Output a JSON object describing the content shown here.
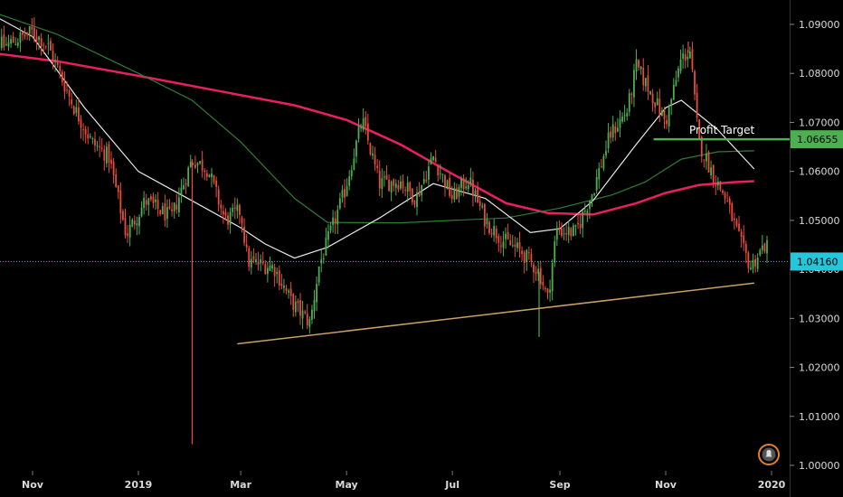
{
  "chart_data": {
    "type": "candlestick",
    "instrument_hint": "daily price chart",
    "y_axis": {
      "ticks": [
        "1.09000",
        "1.08000",
        "1.07000",
        "1.06000",
        "1.05000",
        "1.04000",
        "1.03000",
        "1.02000",
        "1.01000",
        "1.00000"
      ],
      "ylim": [
        1.0,
        1.093
      ],
      "position": "right"
    },
    "x_axis": {
      "ticks": [
        "Nov",
        "2019",
        "Mar",
        "May",
        "Jul",
        "Sep",
        "Nov",
        "2020"
      ],
      "tick_dates": [
        "2018-11-01",
        "2019-01-01",
        "2019-03-01",
        "2019-05-01",
        "2019-07-01",
        "2019-09-01",
        "2019-11-01",
        "2020-01-01"
      ],
      "xlim": [
        "2018-10-01",
        "2020-01-13"
      ]
    },
    "grid": false,
    "annotations": {
      "profit_target": {
        "label": "Profit Target",
        "value": 1.06655,
        "value_text": "1.06655",
        "start_date": "2019-10-25",
        "color": "#4caf50"
      },
      "current_price": {
        "value": 1.0416,
        "value_text": "1.04160",
        "color": "#26c6da"
      },
      "support_trendline": {
        "start": [
          "2019-02-27",
          1.0248
        ],
        "end": [
          "2019-12-22",
          1.0372
        ],
        "color": "#c8a064"
      }
    },
    "moving_averages": [
      {
        "color": "#e91e63",
        "points": [
          [
            "2018-10-01",
            1.0845
          ],
          [
            "2018-11-15",
            1.0825
          ],
          [
            "2019-01-01",
            1.0795
          ],
          [
            "2019-02-15",
            1.0765
          ],
          [
            "2019-04-01",
            1.0735
          ],
          [
            "2019-05-01",
            1.0705
          ],
          [
            "2019-06-01",
            1.0655
          ],
          [
            "2019-07-01",
            1.0595
          ],
          [
            "2019-08-01",
            1.0535
          ],
          [
            "2019-08-25",
            1.0515
          ],
          [
            "2019-09-20",
            1.0512
          ],
          [
            "2019-10-15",
            1.0535
          ],
          [
            "2019-11-01",
            1.0556
          ],
          [
            "2019-11-20",
            1.0572
          ],
          [
            "2019-12-10",
            1.0578
          ],
          [
            "2019-12-22",
            1.058
          ]
        ]
      },
      {
        "color": "#2e7d32",
        "points": [
          [
            "2018-10-01",
            1.0935
          ],
          [
            "2018-11-15",
            1.088
          ],
          [
            "2019-01-01",
            1.08
          ],
          [
            "2019-02-01",
            1.0745
          ],
          [
            "2019-03-01",
            1.066
          ],
          [
            "2019-04-01",
            1.0545
          ],
          [
            "2019-04-20",
            1.0496
          ],
          [
            "2019-06-01",
            1.0495
          ],
          [
            "2019-07-01",
            1.05
          ],
          [
            "2019-08-01",
            1.0505
          ],
          [
            "2019-09-01",
            1.0525
          ],
          [
            "2019-10-01",
            1.0552
          ],
          [
            "2019-10-20",
            1.0578
          ],
          [
            "2019-11-10",
            1.0625
          ],
          [
            "2019-12-01",
            1.064
          ],
          [
            "2019-12-22",
            1.0642
          ]
        ]
      },
      {
        "color": "#e8e8e8",
        "points": [
          [
            "2018-10-01",
            1.0935
          ],
          [
            "2018-11-01",
            1.0875
          ],
          [
            "2018-12-01",
            1.073
          ],
          [
            "2019-01-01",
            1.06
          ],
          [
            "2019-02-01",
            1.054
          ],
          [
            "2019-03-01",
            1.0485
          ],
          [
            "2019-03-15",
            1.0452
          ],
          [
            "2019-04-01",
            1.0423
          ],
          [
            "2019-04-20",
            1.0445
          ],
          [
            "2019-05-20",
            1.0505
          ],
          [
            "2019-06-20",
            1.0575
          ],
          [
            "2019-07-20",
            1.0545
          ],
          [
            "2019-08-15",
            1.0475
          ],
          [
            "2019-09-01",
            1.0483
          ],
          [
            "2019-09-20",
            1.054
          ],
          [
            "2019-10-15",
            1.0655
          ],
          [
            "2019-11-01",
            1.073
          ],
          [
            "2019-11-10",
            1.0745
          ],
          [
            "2019-12-01",
            1.0685
          ],
          [
            "2019-12-22",
            1.0605
          ]
        ]
      }
    ],
    "price_path": [
      [
        "2018-10-01",
        1.091
      ],
      [
        "2018-10-15",
        1.0855
      ],
      [
        "2018-11-01",
        1.0885
      ],
      [
        "2018-11-10",
        1.0855
      ],
      [
        "2018-11-25",
        1.073
      ],
      [
        "2018-12-05",
        1.066
      ],
      [
        "2018-12-15",
        1.063
      ],
      [
        "2018-12-25",
        1.047
      ],
      [
        "2019-01-05",
        1.054
      ],
      [
        "2019-01-20",
        1.0505
      ],
      [
        "2019-02-01",
        1.0625
      ],
      [
        "2019-02-10",
        1.0605
      ],
      [
        "2019-02-20",
        1.05
      ],
      [
        "2019-03-01",
        1.052
      ],
      [
        "2019-03-05",
        1.0415
      ],
      [
        "2019-03-20",
        1.0405
      ],
      [
        "2019-03-30",
        1.0335
      ],
      [
        "2019-04-10",
        1.029
      ],
      [
        "2019-04-15",
        1.0405
      ],
      [
        "2019-04-30",
        1.056
      ],
      [
        "2019-05-10",
        1.0705
      ],
      [
        "2019-05-20",
        1.0575
      ],
      [
        "2019-06-01",
        1.058
      ],
      [
        "2019-06-10",
        1.0545
      ],
      [
        "2019-06-20",
        1.063
      ],
      [
        "2019-07-01",
        1.0545
      ],
      [
        "2019-07-10",
        1.0585
      ],
      [
        "2019-07-20",
        1.05
      ],
      [
        "2019-07-30",
        1.046
      ],
      [
        "2019-08-10",
        1.0435
      ],
      [
        "2019-08-20",
        1.0395
      ],
      [
        "2019-08-25",
        1.034
      ],
      [
        "2019-08-30",
        1.048
      ],
      [
        "2019-09-10",
        1.0475
      ],
      [
        "2019-09-20",
        1.056
      ],
      [
        "2019-09-30",
        1.0675
      ],
      [
        "2019-10-10",
        1.0725
      ],
      [
        "2019-10-15",
        1.0815
      ],
      [
        "2019-10-25",
        1.075
      ],
      [
        "2019-11-01",
        1.07
      ],
      [
        "2019-11-10",
        1.083
      ],
      [
        "2019-11-15",
        1.0845
      ],
      [
        "2019-11-20",
        1.066
      ],
      [
        "2019-11-30",
        1.058
      ],
      [
        "2019-12-05",
        1.055
      ],
      [
        "2019-12-15",
        1.0445
      ],
      [
        "2019-12-20",
        1.0405
      ],
      [
        "2019-12-28",
        1.045
      ],
      [
        "2020-01-05",
        1.0416
      ]
    ],
    "spikes": [
      {
        "date": "2019-02-01",
        "low": 1.0043,
        "color": "#e74c3c"
      },
      {
        "date": "2019-08-20",
        "low": 1.0262,
        "color": "#4caf50"
      },
      {
        "date": "2019-11-14",
        "high": 1.0865,
        "color": "#e74c3c"
      }
    ],
    "candle_colors": {
      "up": "#4caf50",
      "down": "#e74c3c"
    }
  },
  "ui": {
    "badge_icon": "alert-bell-icon"
  }
}
